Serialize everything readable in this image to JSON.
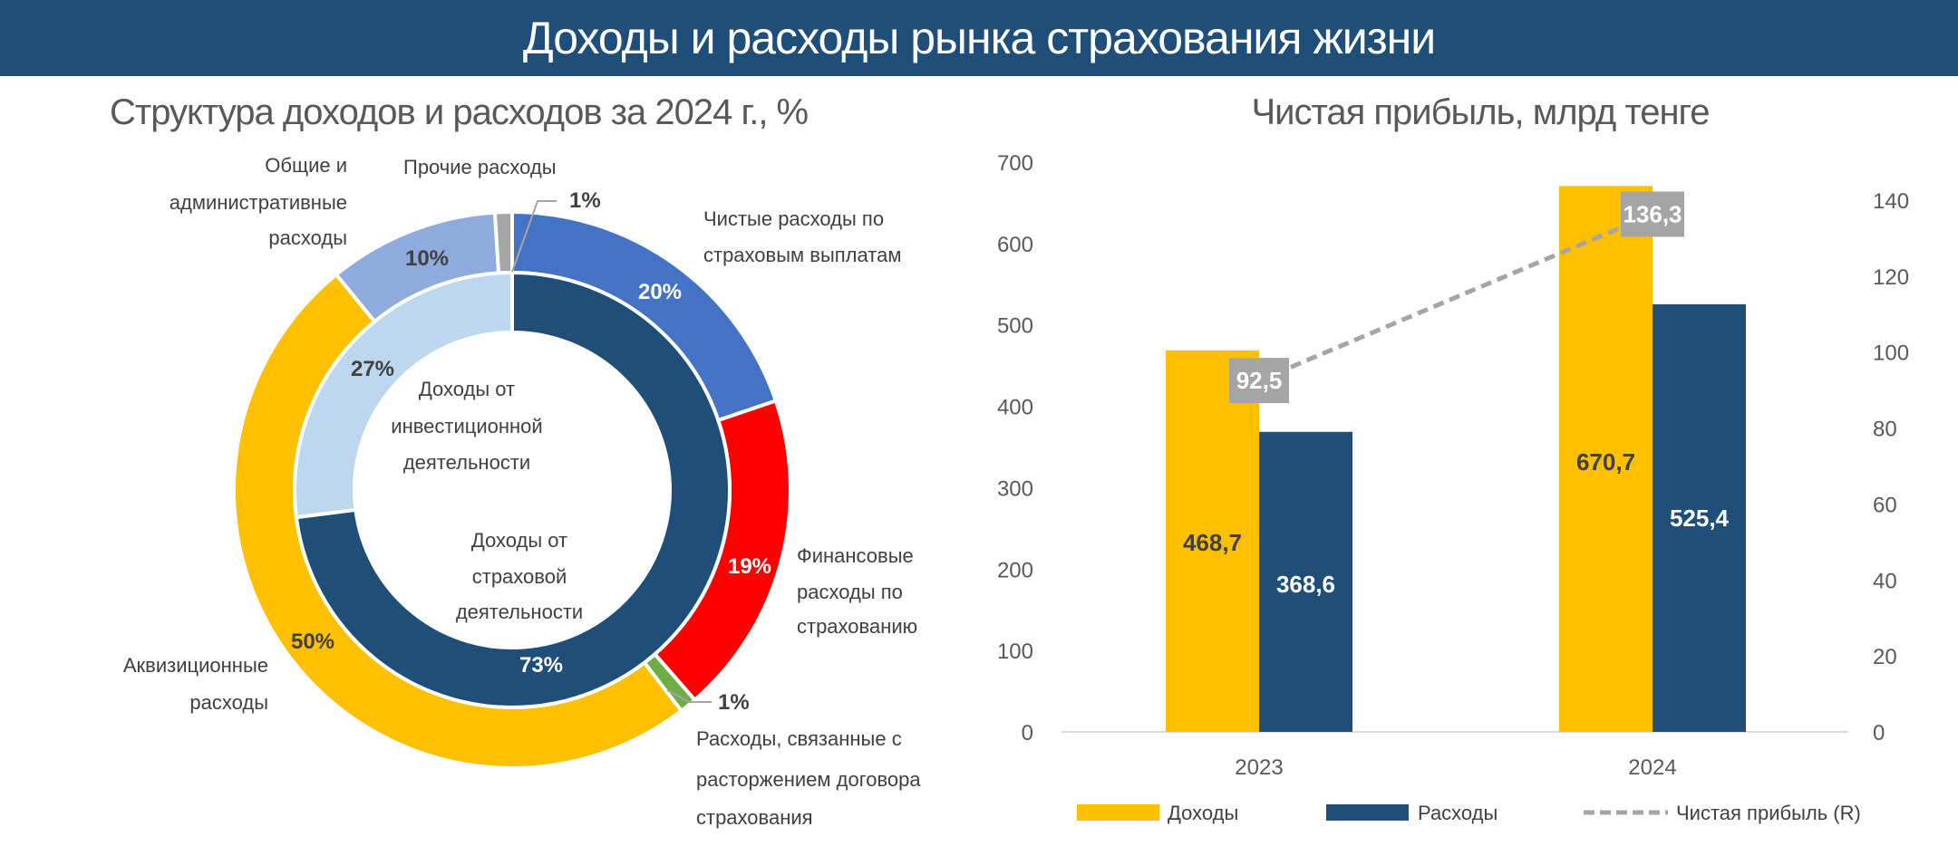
{
  "header": {
    "title": "Доходы и расходы рынка страхования жизни"
  },
  "chart_data": [
    {
      "type": "pie",
      "variant": "double-donut",
      "title": "Структура доходов и расходов за 2024 г., %",
      "outer_ring": [
        {
          "name": "Чистые расходы по страховым выплатам",
          "value": 20,
          "label": "20%",
          "color": "#4472C4"
        },
        {
          "name": "Финансовые расходы по страхованию",
          "value": 19,
          "label": "19%",
          "color": "#FF0000"
        },
        {
          "name": "Расходы, связанные с расторжением договора страхования",
          "value": 1,
          "label": "1%",
          "color": "#70AD47"
        },
        {
          "name": "Аквизиционные расходы",
          "value": 50,
          "label": "50%",
          "color": "#FFC000"
        },
        {
          "name": "Общие и административные расходы",
          "value": 10,
          "label": "10%",
          "color": "#8FAADC"
        },
        {
          "name": "Прочие расходы",
          "value": 1,
          "label": "1%",
          "color": "#A5A5A5"
        }
      ],
      "inner_ring": [
        {
          "name": "Доходы от страховой деятельности",
          "value": 73,
          "label": "73%",
          "color": "#1F4E79"
        },
        {
          "name": "Доходы от инвестиционной деятельности",
          "value": 27,
          "label": "27%",
          "color": "#BDD7EE"
        }
      ]
    },
    {
      "type": "bar",
      "title": "Чистая прибыль, млрд тенге",
      "categories": [
        "2023",
        "2024"
      ],
      "series": [
        {
          "name": "Доходы",
          "values": [
            468.7,
            670.7
          ],
          "labels": [
            "468,7",
            "670,7"
          ],
          "color": "#FFC000",
          "axis": "left"
        },
        {
          "name": "Расходы",
          "values": [
            368.6,
            525.4
          ],
          "labels": [
            "368,6",
            "525,4"
          ],
          "color": "#1F4E79",
          "axis": "left"
        },
        {
          "name": "Чистая прибыль (R)",
          "type": "line",
          "style": "dashed",
          "values": [
            92.5,
            136.3
          ],
          "labels": [
            "92,5",
            "136,3"
          ],
          "color": "#A5A5A5",
          "axis": "right"
        }
      ],
      "ylim": [
        0,
        700
      ],
      "yticks": [
        "0",
        "100",
        "200",
        "300",
        "400",
        "500",
        "600",
        "700"
      ],
      "y2lim": [
        0,
        150
      ],
      "y2ticks": [
        "0",
        "20",
        "40",
        "60",
        "80",
        "100",
        "120",
        "140"
      ],
      "grid": false,
      "legend": "bottom"
    }
  ]
}
